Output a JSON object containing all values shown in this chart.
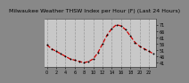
{
  "title": "Milwaukee Weather THSW Index per Hour (F) (Last 24 Hours)",
  "x": [
    0,
    1,
    2,
    3,
    4,
    5,
    6,
    7,
    8,
    9,
    10,
    11,
    12,
    13,
    14,
    15,
    16,
    17,
    18,
    19,
    20,
    21,
    22,
    23
  ],
  "y": [
    55,
    52,
    50,
    48,
    46,
    44,
    43,
    42,
    41,
    42,
    44,
    49,
    56,
    63,
    68,
    71,
    70,
    67,
    62,
    57,
    54,
    52,
    50,
    48
  ],
  "line_color": "#cc0000",
  "marker_color": "#000000",
  "bg_color": "#888888",
  "plot_bg": "#c8c8c8",
  "grid_color": "#999999",
  "ymin": 38,
  "ymax": 76,
  "ytick_values": [
    41,
    46,
    51,
    56,
    61,
    66,
    71
  ],
  "ytick_labels": [
    "41",
    "46",
    "51",
    "56",
    "61",
    "66",
    "71"
  ],
  "xtick_positions": [
    0,
    2,
    4,
    6,
    8,
    10,
    12,
    14,
    16,
    18,
    20,
    22
  ],
  "vgrid_positions": [
    0,
    2,
    4,
    6,
    8,
    10,
    12,
    14,
    16,
    18,
    20,
    22
  ],
  "title_fontsize": 4.5,
  "tick_fontsize": 3.5
}
